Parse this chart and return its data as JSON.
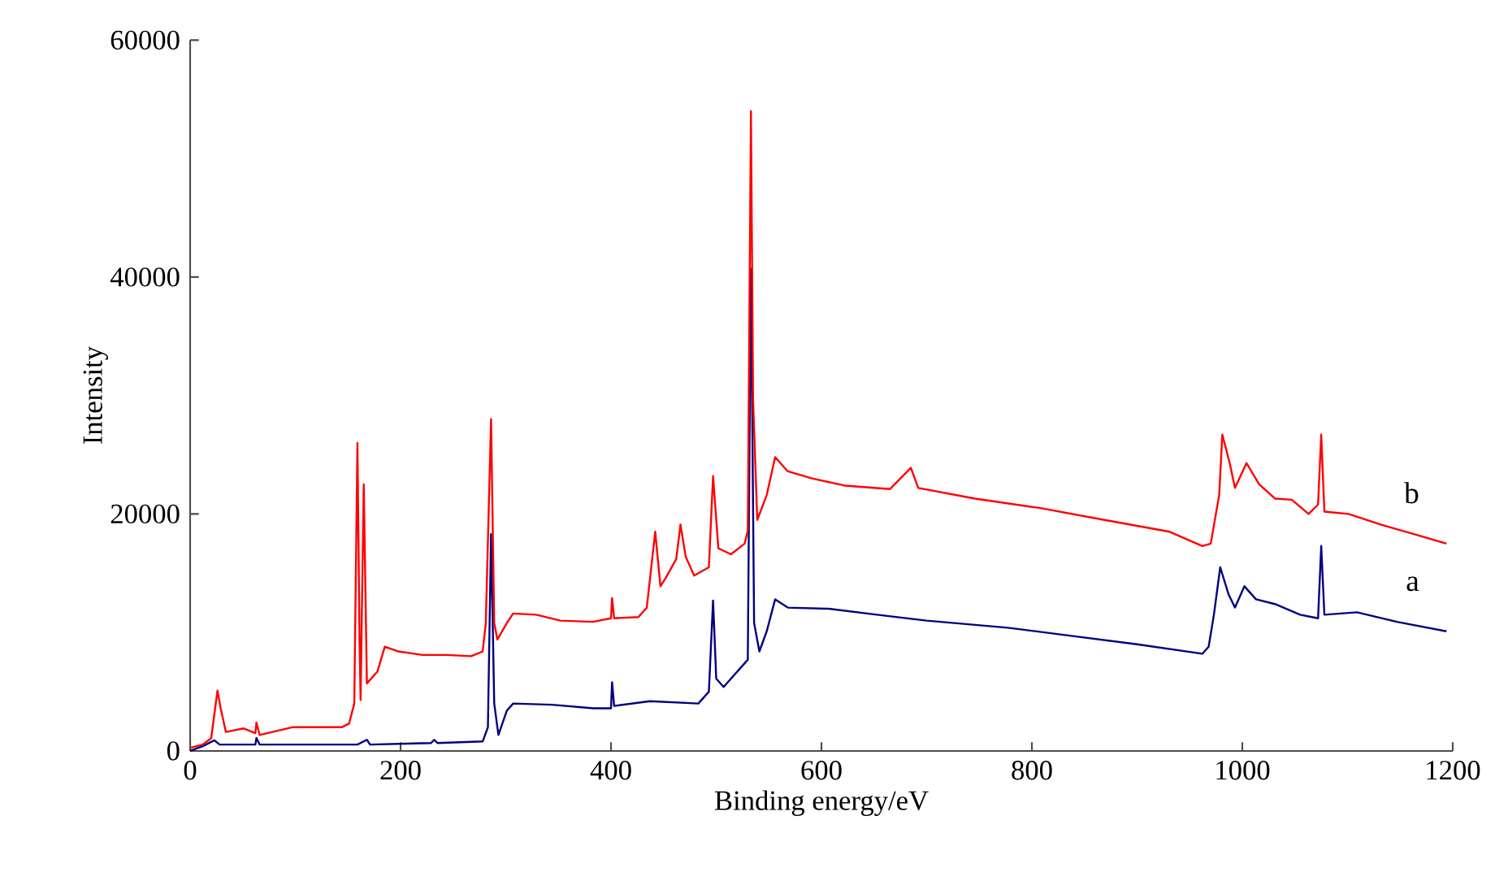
{
  "chart_data": {
    "type": "line",
    "xlabel": "Binding energy/eV",
    "ylabel": "Intensity",
    "xlim": [
      0,
      1200
    ],
    "ylim": [
      0,
      60000
    ],
    "xticks": [
      0,
      200,
      400,
      600,
      800,
      1000,
      1200
    ],
    "yticks": [
      0,
      20000,
      40000,
      60000
    ],
    "series": [
      {
        "name": "a",
        "color": "#000080",
        "x": [
          0,
          12,
          23,
          28,
          36,
          62,
          63,
          66,
          159,
          168,
          171,
          229,
          232,
          235,
          278,
          283,
          286,
          289,
          293,
          301,
          307,
          344,
          383,
          400,
          401,
          403,
          437,
          483,
          493,
          497,
          500,
          507,
          527,
          530,
          533,
          536,
          541,
          548,
          556,
          568,
          607,
          653,
          700,
          777,
          839,
          900,
          962,
          968,
          973,
          979,
          987,
          993,
          1002,
          1013,
          1031,
          1055,
          1072,
          1075,
          1078,
          1109,
          1147,
          1194
        ],
        "values": [
          0,
          400,
          900,
          540,
          540,
          540,
          1100,
          540,
          540,
          940,
          540,
          670,
          940,
          670,
          800,
          2000,
          18300,
          4000,
          1350,
          3400,
          4000,
          3900,
          3600,
          3600,
          5800,
          3800,
          4200,
          4000,
          5000,
          12700,
          6100,
          5400,
          7400,
          7700,
          40700,
          10800,
          8400,
          10100,
          12800,
          12100,
          12000,
          11500,
          11000,
          10400,
          9700,
          9000,
          8200,
          8800,
          11500,
          15500,
          13200,
          12100,
          13900,
          12800,
          12400,
          11500,
          11200,
          17300,
          11500,
          11700,
          10900,
          10100
        ]
      },
      {
        "name": "b",
        "color": "#ff0000",
        "x": [
          0,
          12,
          20,
          26,
          29,
          34,
          51,
          62,
          63,
          66,
          97,
          144,
          151,
          156,
          159,
          161,
          162,
          165,
          168,
          178,
          185,
          198,
          221,
          244,
          267,
          278,
          281,
          286,
          289,
          292,
          301,
          307,
          329,
          352,
          383,
          400,
          401,
          403,
          426,
          434,
          442,
          447,
          452,
          462,
          466,
          471,
          479,
          493,
          497,
          502,
          514,
          527,
          530,
          533,
          535,
          539,
          548,
          556,
          568,
          591,
          622,
          665,
          685,
          692,
          746,
          808,
          869,
          931,
          962,
          970,
          978,
          981,
          988,
          993,
          1004,
          1016,
          1031,
          1047,
          1063,
          1072,
          1075,
          1078,
          1101,
          1132,
          1163,
          1194
        ],
        "values": [
          270,
          540,
          1080,
          5100,
          3600,
          1600,
          1900,
          1500,
          2400,
          1350,
          2000,
          2000,
          2300,
          4000,
          26000,
          9400,
          4300,
          22500,
          5700,
          6700,
          8800,
          8400,
          8100,
          8100,
          8000,
          8400,
          10800,
          28000,
          10800,
          9400,
          10800,
          11600,
          11500,
          11000,
          10900,
          11200,
          12900,
          11200,
          11300,
          12100,
          18500,
          13900,
          14600,
          16200,
          19100,
          16400,
          14800,
          15500,
          23200,
          17100,
          16600,
          17500,
          18600,
          54000,
          29700,
          19500,
          21600,
          24800,
          23600,
          23000,
          22400,
          22100,
          23900,
          22200,
          21300,
          20500,
          19500,
          18500,
          17300,
          17500,
          21600,
          26700,
          24300,
          22200,
          24300,
          22500,
          21300,
          21200,
          20000,
          20800,
          26700,
          20200,
          20000,
          19100,
          18300,
          17500
        ]
      }
    ]
  }
}
